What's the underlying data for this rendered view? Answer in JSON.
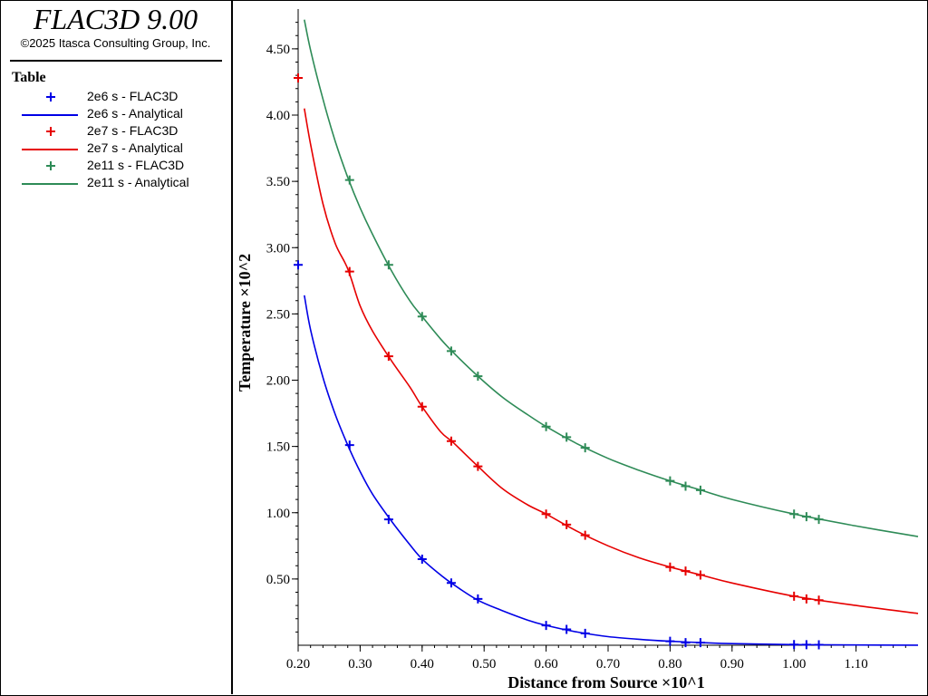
{
  "app": {
    "title": "FLAC3D 9.00",
    "copyright": "©2025 Itasca Consulting Group, Inc."
  },
  "legend": {
    "title": "Table",
    "items": [
      {
        "label": "2e6 s - FLAC3D",
        "kind": "marker",
        "color": "#0000e6"
      },
      {
        "label": "2e6 s - Analytical",
        "kind": "line",
        "color": "#0000e6"
      },
      {
        "label": "2e7 s - FLAC3D",
        "kind": "marker",
        "color": "#e60000"
      },
      {
        "label": "2e7 s - Analytical",
        "kind": "line",
        "color": "#e60000"
      },
      {
        "label": "2e11 s - FLAC3D",
        "kind": "marker",
        "color": "#2e8b57"
      },
      {
        "label": "2e11 s - Analytical",
        "kind": "line",
        "color": "#2e8b57"
      }
    ]
  },
  "chart_data": {
    "type": "line",
    "xlabel": "Distance from Source ×10^1",
    "ylabel": "Temperature ×10^2",
    "xlim": [
      0.2,
      1.2
    ],
    "ylim": [
      0,
      4.8
    ],
    "x_ticks": [
      "0.20",
      "0.30",
      "0.40",
      "0.50",
      "0.60",
      "0.70",
      "0.80",
      "0.90",
      "1.00",
      "1.10"
    ],
    "y_ticks": [
      "0.50",
      "1.00",
      "1.50",
      "2.00",
      "2.50",
      "3.00",
      "3.50",
      "4.00",
      "4.50"
    ],
    "grid": false,
    "series": [
      {
        "name": "2e6 s - Analytical",
        "color": "#0000e6",
        "style": "line",
        "x": [
          0.21,
          0.22,
          0.24,
          0.26,
          0.28,
          0.3,
          0.32,
          0.35,
          0.38,
          0.4,
          0.43,
          0.45,
          0.49,
          0.53,
          0.57,
          0.6,
          0.65,
          0.7,
          0.75,
          0.8,
          0.85,
          0.9,
          1.0,
          1.1,
          1.2
        ],
        "y": [
          2.64,
          2.38,
          2.02,
          1.74,
          1.51,
          1.31,
          1.14,
          0.94,
          0.76,
          0.65,
          0.53,
          0.46,
          0.34,
          0.26,
          0.19,
          0.15,
          0.1,
          0.065,
          0.045,
          0.03,
          0.02,
          0.012,
          0.005,
          0.002,
          0.001
        ]
      },
      {
        "name": "2e6 s - FLAC3D",
        "color": "#0000e6",
        "style": "marker",
        "x": [
          0.2,
          0.283,
          0.346,
          0.4,
          0.447,
          0.49,
          0.6,
          0.633,
          0.663,
          0.8,
          0.825,
          0.849,
          1.0,
          1.02,
          1.04
        ],
        "y": [
          2.87,
          1.51,
          0.95,
          0.65,
          0.47,
          0.35,
          0.15,
          0.12,
          0.09,
          0.03,
          0.02,
          0.02,
          0.005,
          0.004,
          0.003
        ]
      },
      {
        "name": "2e7 s - Analytical",
        "color": "#e60000",
        "style": "line",
        "x": [
          0.21,
          0.22,
          0.24,
          0.26,
          0.28,
          0.3,
          0.32,
          0.35,
          0.38,
          0.4,
          0.43,
          0.45,
          0.49,
          0.53,
          0.57,
          0.6,
          0.65,
          0.7,
          0.75,
          0.8,
          0.85,
          0.9,
          1.0,
          1.1,
          1.2
        ],
        "y": [
          4.05,
          3.78,
          3.33,
          3.03,
          2.84,
          2.56,
          2.37,
          2.15,
          1.95,
          1.8,
          1.61,
          1.53,
          1.35,
          1.18,
          1.06,
          0.99,
          0.86,
          0.75,
          0.66,
          0.59,
          0.53,
          0.47,
          0.37,
          0.3,
          0.24
        ]
      },
      {
        "name": "2e7 s - FLAC3D",
        "color": "#e60000",
        "style": "marker",
        "x": [
          0.2,
          0.283,
          0.346,
          0.4,
          0.447,
          0.49,
          0.6,
          0.633,
          0.663,
          0.8,
          0.825,
          0.849,
          1.0,
          1.02,
          1.04
        ],
        "y": [
          4.28,
          2.82,
          2.18,
          1.8,
          1.54,
          1.35,
          0.99,
          0.91,
          0.83,
          0.59,
          0.56,
          0.53,
          0.37,
          0.35,
          0.34
        ]
      },
      {
        "name": "2e11 s - Analytical",
        "color": "#2e8b57",
        "style": "line",
        "x": [
          0.21,
          0.22,
          0.24,
          0.26,
          0.28,
          0.3,
          0.32,
          0.35,
          0.38,
          0.4,
          0.43,
          0.45,
          0.49,
          0.53,
          0.57,
          0.6,
          0.65,
          0.7,
          0.75,
          0.8,
          0.85,
          0.9,
          1.0,
          1.1,
          1.2
        ],
        "y": [
          4.72,
          4.49,
          4.12,
          3.8,
          3.53,
          3.3,
          3.1,
          2.83,
          2.6,
          2.48,
          2.31,
          2.21,
          2.03,
          1.87,
          1.74,
          1.65,
          1.52,
          1.41,
          1.32,
          1.24,
          1.17,
          1.1,
          0.99,
          0.9,
          0.82
        ]
      },
      {
        "name": "2e11 s - FLAC3D",
        "color": "#2e8b57",
        "style": "marker",
        "x": [
          0.283,
          0.346,
          0.4,
          0.447,
          0.49,
          0.6,
          0.633,
          0.663,
          0.8,
          0.825,
          0.849,
          1.0,
          1.02,
          1.04
        ],
        "y": [
          3.51,
          2.87,
          2.48,
          2.22,
          2.03,
          1.65,
          1.57,
          1.49,
          1.24,
          1.2,
          1.17,
          0.99,
          0.97,
          0.95
        ]
      }
    ]
  }
}
